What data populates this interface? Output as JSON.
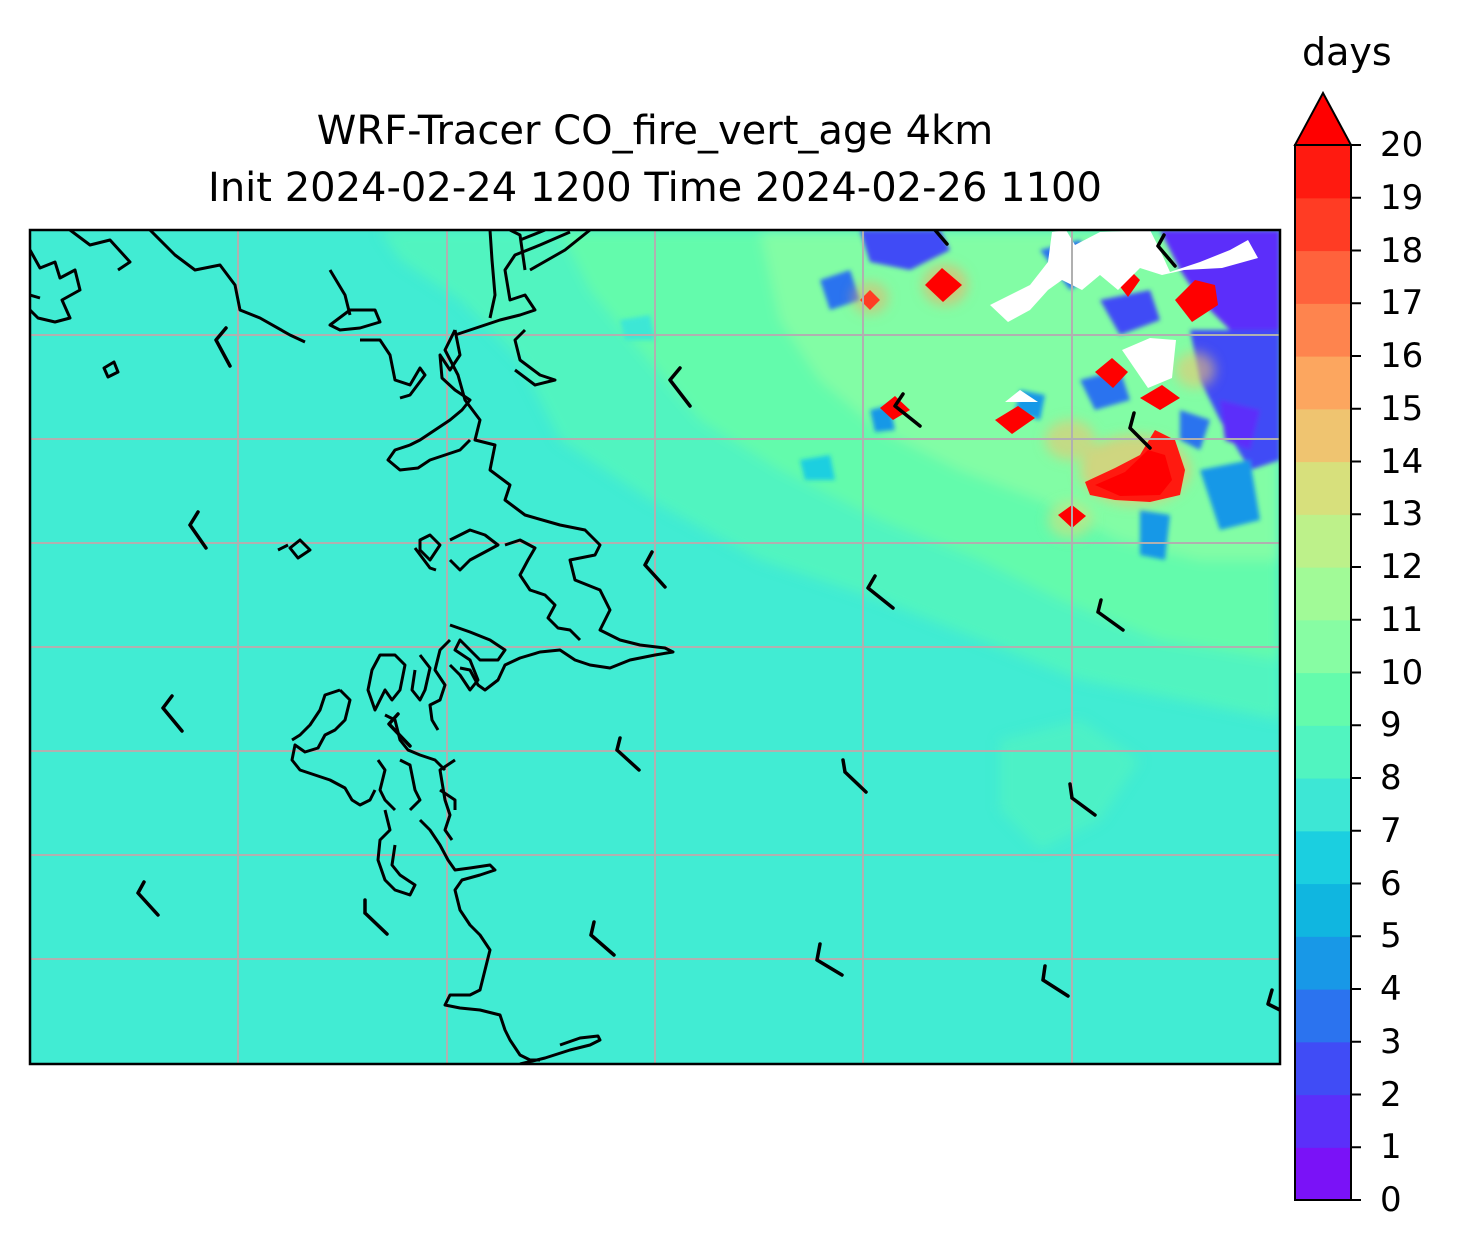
{
  "title_line1": "WRF-Tracer CO_fire_vert_age 4km",
  "title_line2": "Init 2024-02-24 1200 Time 2024-02-26 1100",
  "colorbar": {
    "unit": "days",
    "ticks": [
      "0",
      "1",
      "2",
      "3",
      "4",
      "5",
      "6",
      "7",
      "8",
      "9",
      "10",
      "11",
      "12",
      "13",
      "14",
      "15",
      "16",
      "17",
      "18",
      "19",
      "20"
    ],
    "extend": "max",
    "colors": [
      "#7a12f7",
      "#5b2ffa",
      "#404cf6",
      "#2b73ef",
      "#1898e7",
      "#10b6e0",
      "#1bcfe0",
      "#3de7d5",
      "#51f4c0",
      "#64fbac",
      "#87fda3",
      "#a1fa97",
      "#bdf18a",
      "#d7e07c",
      "#efc470",
      "#fca65f",
      "#fe844e",
      "#ff623c",
      "#ff3c24",
      "#ff1a10"
    ],
    "over_color": "#ff0000"
  },
  "map": {
    "background_color": "#41ecd3",
    "gridline_color": "#b0b0b0",
    "coastline_color": "#000000",
    "barb_color": "#000000"
  }
}
